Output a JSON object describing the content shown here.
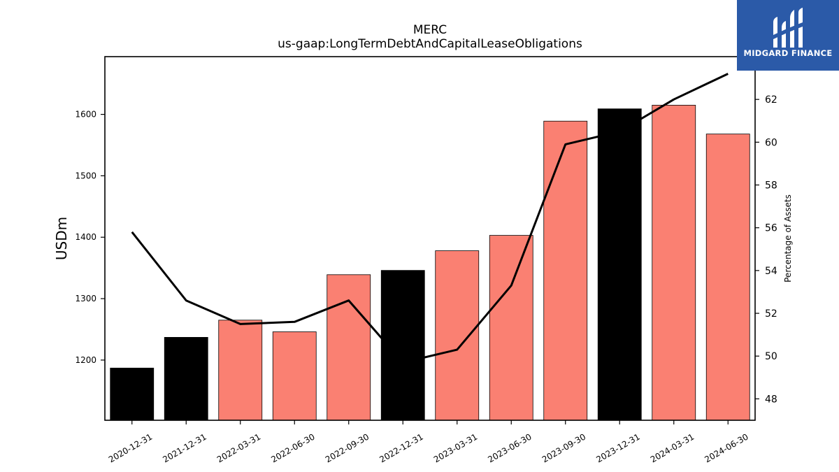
{
  "chart_data": {
    "type": "bar",
    "title": "MERC",
    "subtitle": "us-gaap:LongTermDebtAndCapitalLeaseObligations",
    "ylabel": "USDm",
    "y2label": "Percentage of Assets",
    "categories": [
      "2020-12-31",
      "2021-12-31",
      "2022-03-31",
      "2022-06-30",
      "2022-09-30",
      "2022-12-31",
      "2023-03-31",
      "2023-06-30",
      "2023-09-30",
      "2023-12-31",
      "2024-03-31",
      "2024-06-30"
    ],
    "series": [
      {
        "values": [
          1187,
          1237,
          1265,
          1246,
          1339,
          1346,
          1378,
          1403,
          1589,
          1609,
          1615,
          1568
        ],
        "bar_colors": [
          "#000000",
          "#000000",
          "#fa8072",
          "#fa8072",
          "#fa8072",
          "#000000",
          "#fa8072",
          "#fa8072",
          "#fa8072",
          "#000000",
          "#fa8072",
          "#fa8072"
        ]
      },
      {
        "axis": "right",
        "values": [
          55.8,
          52.6,
          51.5,
          51.6,
          52.6,
          49.7,
          50.3,
          53.3,
          59.9,
          60.5,
          62.0,
          63.2
        ],
        "color": "#000000"
      }
    ],
    "ylim": [
      1102,
      1694
    ],
    "yticks": [
      "1200",
      "1300",
      "1400",
      "1500",
      "1600"
    ],
    "y2lim": [
      47.0,
      64.0
    ],
    "y2ticks": [
      "48",
      "50",
      "52",
      "54",
      "56",
      "58",
      "60",
      "62"
    ],
    "grid": false,
    "legend": "none"
  },
  "logo": {
    "text": "MIDGARD FINANCE",
    "background": "#2b5aa8"
  }
}
